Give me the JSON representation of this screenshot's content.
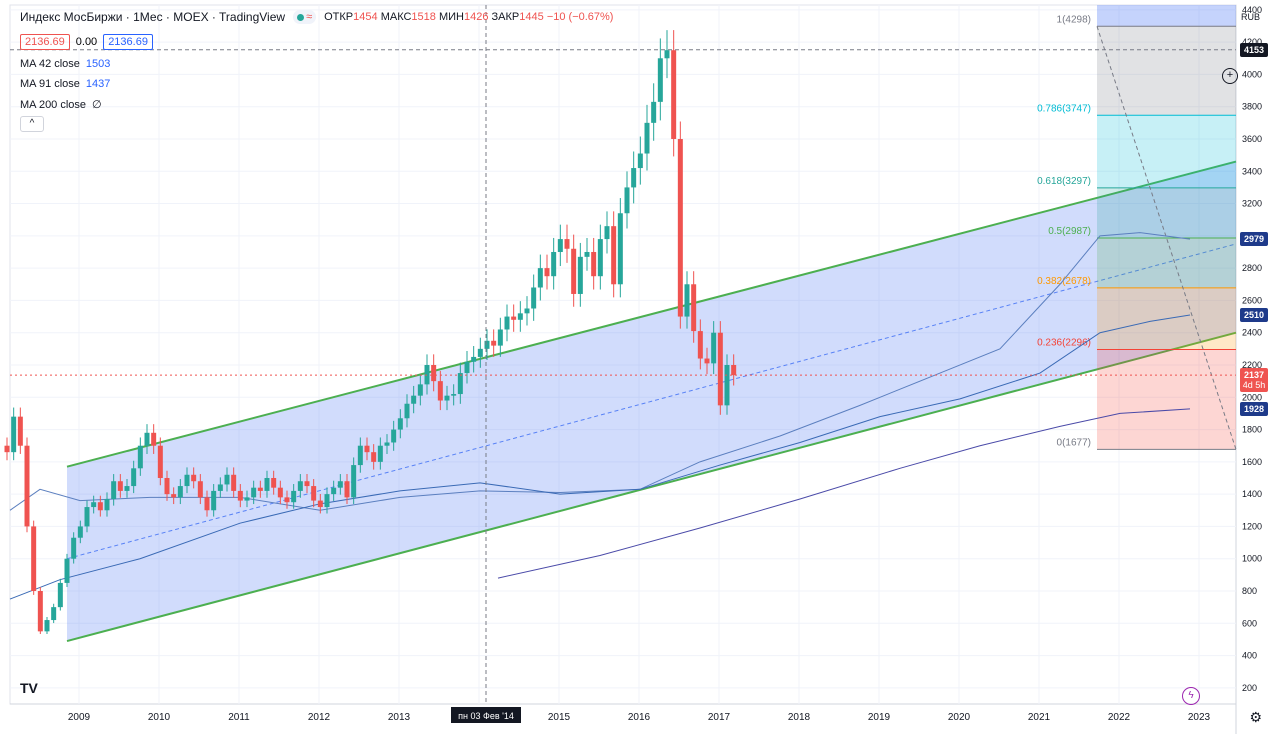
{
  "header": {
    "title": "Индекс МосБиржи · 1Мес · MOEX · TradingView",
    "open_label": "ОТКР",
    "open_value": "1454",
    "high_label": "МАКС",
    "high_value": "1518",
    "low_label": "МИН",
    "low_value": "1426",
    "close_label": "ЗАКР",
    "close_value": "1445",
    "change": "−10 (−0.67%)"
  },
  "buttons": {
    "sell": "2136.69",
    "spread": "0.00",
    "buy": "2136.69",
    "collapse": "^"
  },
  "indicators": [
    {
      "label": "MA 42 close",
      "value": "1503"
    },
    {
      "label": "MA 91 close",
      "value": "1437"
    },
    {
      "label": "MA 200 close",
      "value": "∅"
    }
  ],
  "currency": "RUB",
  "cursor_date": "пн 03 Фев '14",
  "price_labels": [
    {
      "value": "4153",
      "color": "#131722"
    },
    {
      "value": "2979",
      "color": "#1e3a8a"
    },
    {
      "value": "2510",
      "color": "#1e3a8a"
    },
    {
      "value": "2137",
      "sub": "4d 5h",
      "color": "#ef5350"
    },
    {
      "value": "1928",
      "color": "#1e3a8a"
    }
  ],
  "colors": {
    "up": "#26a69a",
    "down": "#ef5350",
    "channel": "#4caf50",
    "ma1": "#5b7fbf",
    "ma2": "#4a4aa8"
  },
  "chart_data": {
    "type": "candlestick",
    "title": "Индекс МосБиржи · 1Мес · MOEX",
    "yticks": [
      200,
      400,
      600,
      800,
      1000,
      1200,
      1400,
      1600,
      1800,
      2000,
      2200,
      2400,
      2600,
      2800,
      3000,
      3200,
      3400,
      3600,
      3800,
      4000,
      4200,
      4400
    ],
    "xticks": [
      "2009",
      "2010",
      "2011",
      "2012",
      "2013",
      "2014",
      "2015",
      "2016",
      "2017",
      "2018",
      "2019",
      "2020",
      "2021",
      "2022",
      "2023"
    ],
    "ylim": [
      100,
      4430
    ],
    "fib_levels": [
      {
        "label": "1(4298)",
        "value": 4298,
        "color": "#787b86"
      },
      {
        "label": "0.786(3747)",
        "value": 3747,
        "color": "#00bcd4"
      },
      {
        "label": "0.618(3297)",
        "value": 3297,
        "color": "#26a69a"
      },
      {
        "label": "0.5(2987)",
        "value": 2987,
        "color": "#4caf50"
      },
      {
        "label": "0.382(2678)",
        "value": 2678,
        "color": "#ff9800"
      },
      {
        "label": "0.236(2296)",
        "value": 2296,
        "color": "#f44336"
      },
      {
        "label": "0(1677)",
        "value": 1677,
        "color": "#787b86"
      }
    ],
    "series_close": [
      1660,
      1880,
      1700,
      1200,
      800,
      550,
      620,
      700,
      850,
      1000,
      1130,
      1200,
      1320,
      1350,
      1300,
      1370,
      1480,
      1420,
      1450,
      1560,
      1700,
      1780,
      1700,
      1500,
      1400,
      1380,
      1450,
      1520,
      1480,
      1380,
      1300,
      1420,
      1460,
      1520,
      1420,
      1360,
      1380,
      1440,
      1420,
      1500,
      1440,
      1380,
      1350,
      1420,
      1480,
      1450,
      1360,
      1320,
      1400,
      1440,
      1480,
      1380,
      1580,
      1700,
      1660,
      1600,
      1700,
      1720,
      1800,
      1870,
      1960,
      2010,
      2080,
      2200,
      2100,
      1980,
      2010,
      2020,
      2150,
      2220,
      2250,
      2300,
      2350,
      2320,
      2420,
      2500,
      2480,
      2520,
      2550,
      2680,
      2800,
      2750,
      2900,
      2980,
      2920,
      2640,
      2870,
      2900,
      2750,
      2980,
      3060,
      2700,
      3140,
      3300,
      3420,
      3510,
      3700,
      3830,
      4100,
      4150,
      3600,
      2500,
      2700,
      2410,
      2240,
      2210,
      2400,
      1950,
      2200,
      2137
    ],
    "series_open": [
      1700,
      1660,
      1880,
      1700,
      1200,
      800,
      550,
      620,
      700,
      850,
      1000,
      1130,
      1200,
      1320,
      1350,
      1300,
      1370,
      1480,
      1420,
      1450,
      1560,
      1700,
      1780,
      1700,
      1500,
      1400,
      1380,
      1450,
      1520,
      1480,
      1380,
      1300,
      1420,
      1460,
      1520,
      1420,
      1360,
      1380,
      1440,
      1420,
      1500,
      1440,
      1380,
      1350,
      1420,
      1480,
      1450,
      1360,
      1320,
      1400,
      1440,
      1480,
      1380,
      1580,
      1700,
      1660,
      1600,
      1700,
      1720,
      1800,
      1870,
      1960,
      2010,
      2080,
      2200,
      2100,
      1980,
      2010,
      2020,
      2150,
      2220,
      2250,
      2300,
      2350,
      2320,
      2420,
      2500,
      2480,
      2520,
      2550,
      2680,
      2800,
      2750,
      2900,
      2980,
      2920,
      2640,
      2870,
      2900,
      2750,
      2980,
      3060,
      2700,
      3140,
      3300,
      3420,
      3510,
      3700,
      3830,
      4100,
      4150,
      3600,
      2500,
      2700,
      2410,
      2240,
      2210,
      2400,
      1950,
      2200
    ]
  }
}
